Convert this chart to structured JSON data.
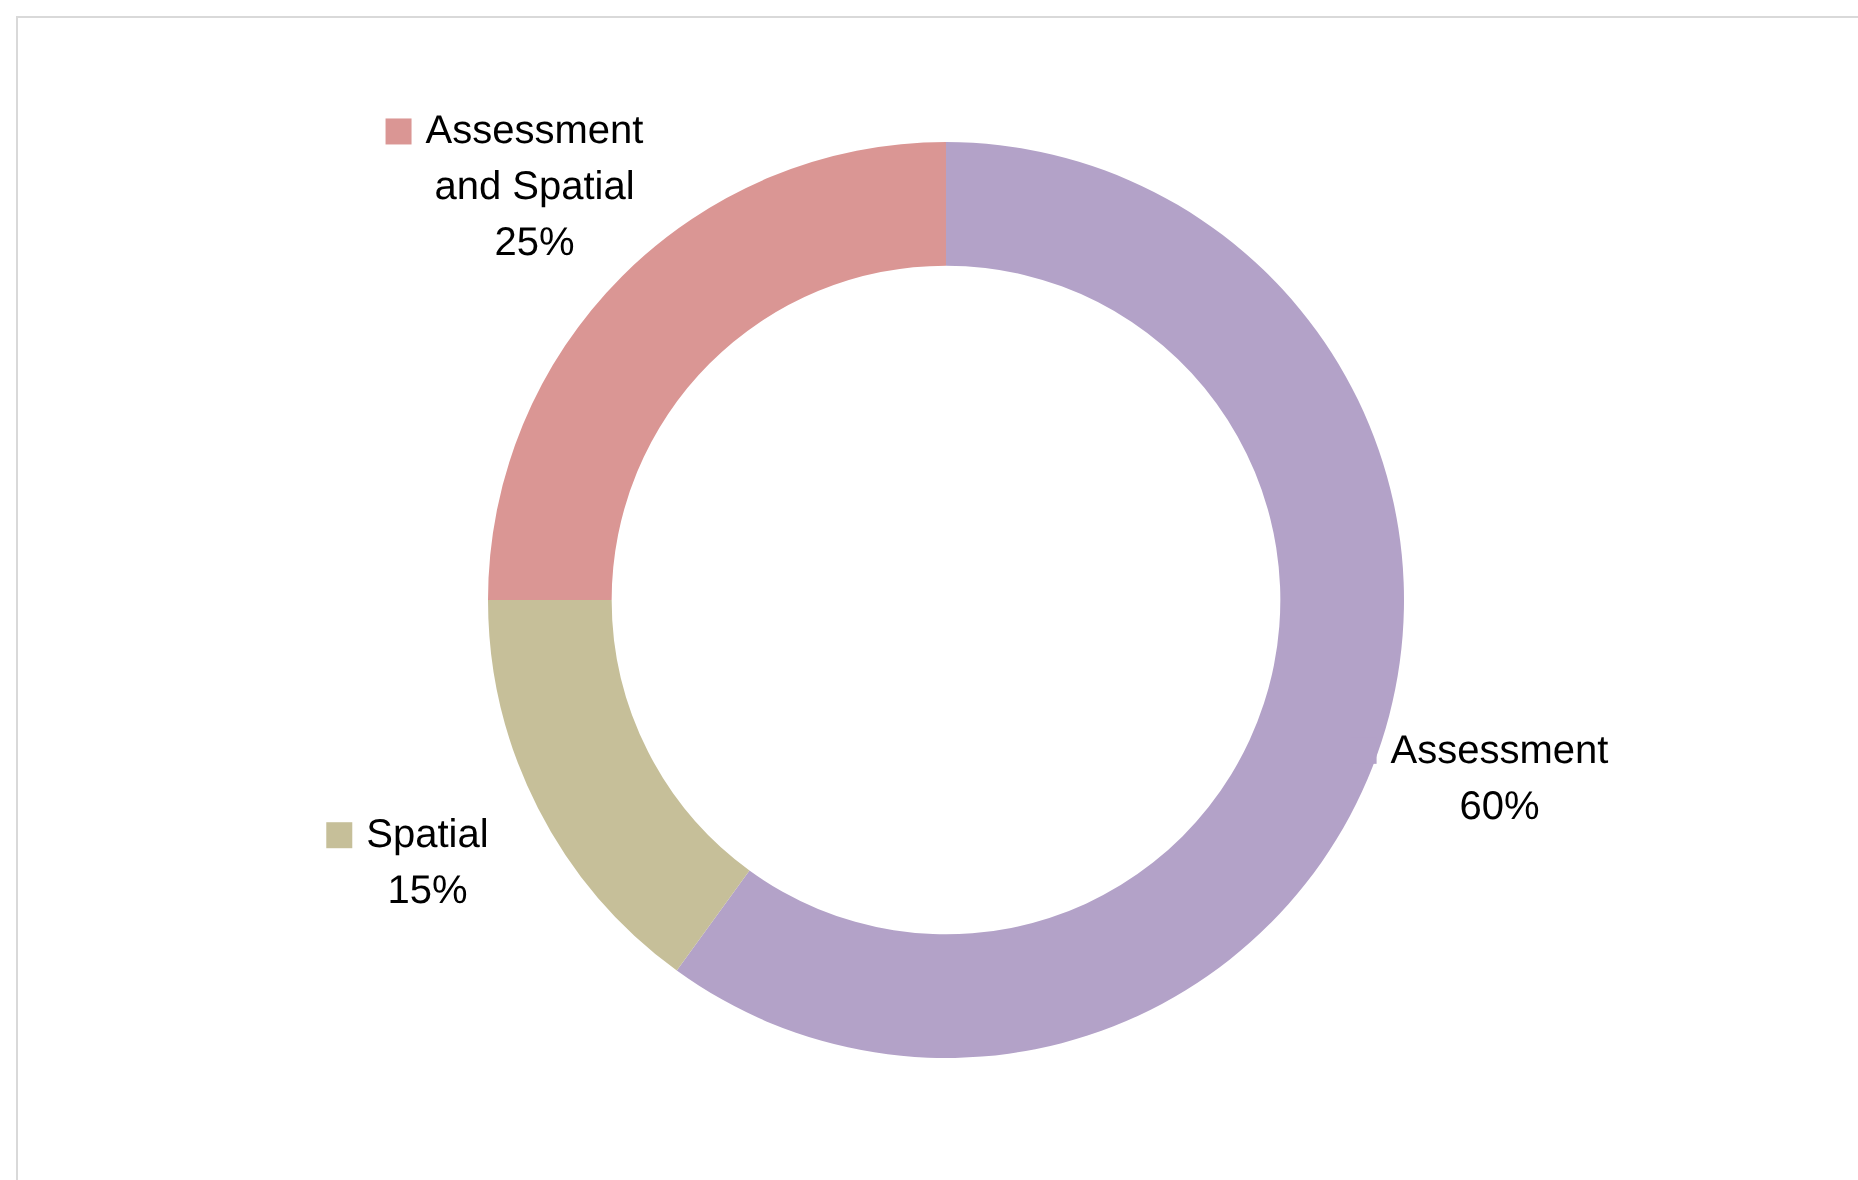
{
  "chart_data": {
    "type": "donut",
    "categories": [
      "Assessment",
      "Spatial",
      "Assessment and Spatial"
    ],
    "values": [
      60,
      15,
      25
    ],
    "colors": [
      "#b3a2c8",
      "#c6bf99",
      "#da9694"
    ],
    "value_labels": [
      "60%",
      "15%",
      "25%"
    ],
    "legend": "left"
  }
}
